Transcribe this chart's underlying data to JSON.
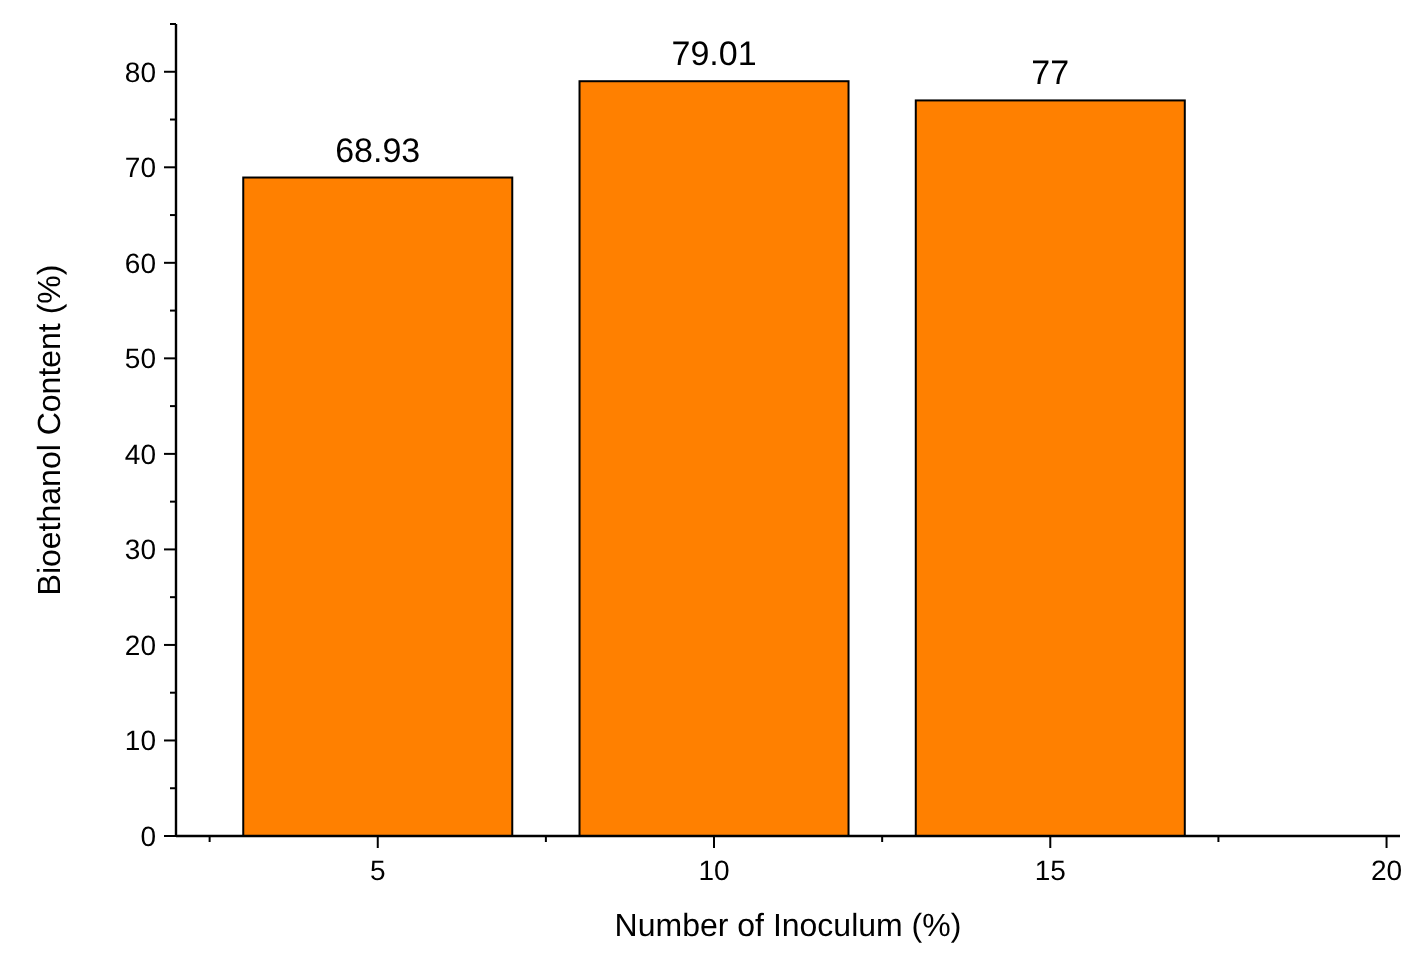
{
  "chart_data": {
    "type": "bar",
    "xlabel": "Number of Inoculum (%)",
    "ylabel": "Bioethanol Content (%)",
    "x": [
      5,
      10,
      15
    ],
    "values": [
      68.93,
      79.01,
      77
    ],
    "color": "#ff8000",
    "data_labels": true,
    "xlim": [
      2,
      20.2
    ],
    "xticks": [
      5,
      10,
      15,
      20
    ],
    "ylim": [
      0,
      85
    ],
    "yticks": [
      0,
      10,
      20,
      30,
      40,
      50,
      60,
      70,
      80
    ],
    "grid": false
  }
}
